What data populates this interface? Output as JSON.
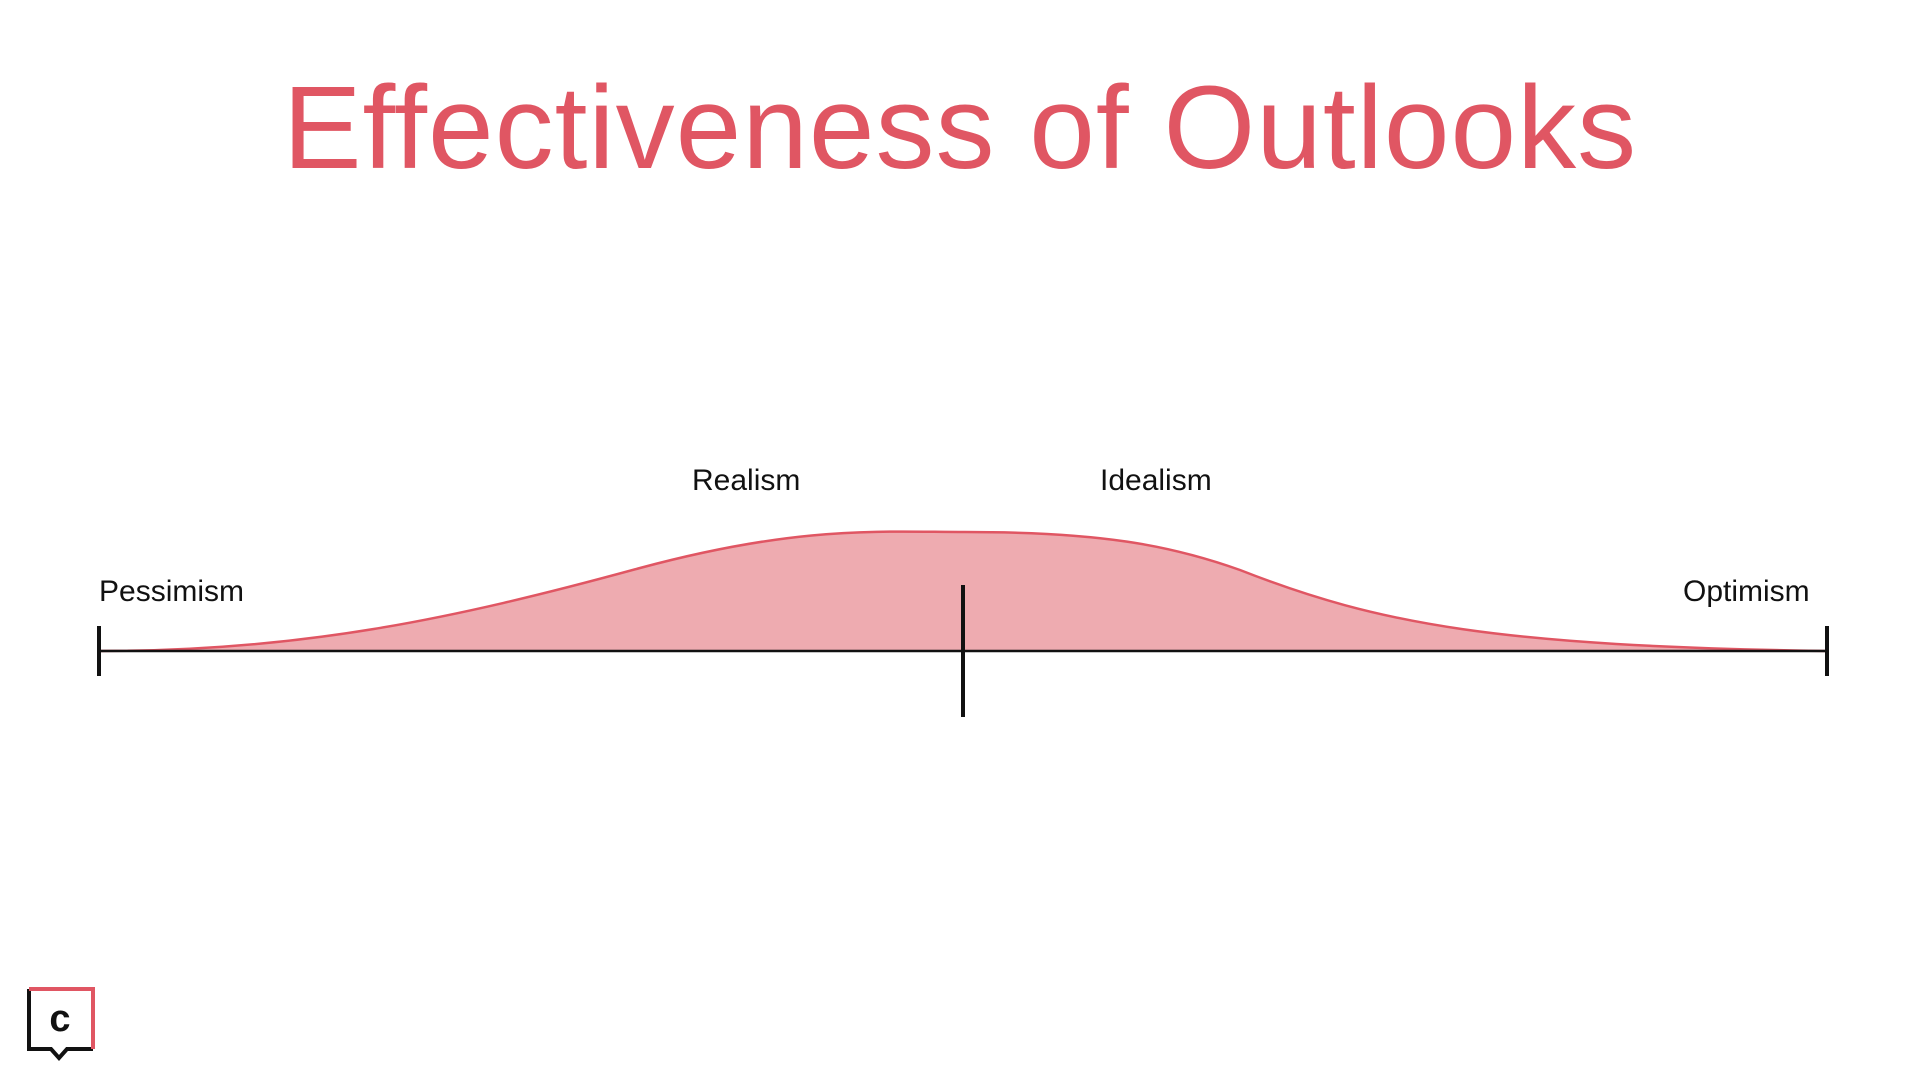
{
  "title": "Effectiveness of Outlooks",
  "axis": {
    "left_label": "Pessimism",
    "right_label": "Optimism"
  },
  "peak_labels": {
    "left": "Realism",
    "right": "Idealism"
  },
  "colors": {
    "accent": "#e05663",
    "fill": "#eeabb0",
    "axis": "#111111",
    "background": "#ffffff"
  },
  "logo": {
    "letter": "c"
  }
}
